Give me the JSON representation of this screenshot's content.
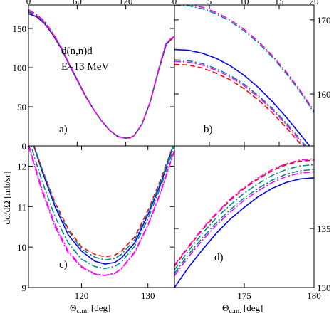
{
  "figure": {
    "ylabel": "dσ/dΩ [mb/sr]",
    "xlabel_left": "Θ",
    "xlabel_left_sub": "c.m.",
    "xlabel_left_unit": " [deg]",
    "xlabel_right": "Θ",
    "xlabel_right_sub": "c.m.",
    "xlabel_right_unit": " [deg]",
    "reaction": "d(n,n)d",
    "energy": "E=13 MeV"
  },
  "chart_data": [
    {
      "panel": "a)",
      "type": "line",
      "xlim": [
        0,
        180
      ],
      "ylim": [
        0,
        180
      ],
      "xticks": [
        0,
        60,
        120
      ],
      "yticks": [
        0,
        50,
        100,
        150
      ],
      "series": [
        {
          "style": "solid",
          "color": "#0000ff",
          "x": [
            0,
            10,
            20,
            30,
            40,
            50,
            60,
            70,
            80,
            90,
            100,
            110,
            120,
            125,
            130,
            140,
            150,
            160,
            170,
            180
          ],
          "y": [
            169,
            165,
            156,
            142,
            125,
            104,
            84,
            64,
            47,
            32,
            20,
            12,
            9.8,
            10.5,
            13,
            28,
            56,
            95,
            130,
            140
          ]
        },
        {
          "style": "dashed",
          "color": "#ff0000",
          "x": [
            0,
            10,
            20,
            30,
            40,
            50,
            60,
            70,
            80,
            90,
            100,
            110,
            120,
            125,
            130,
            140,
            150,
            160,
            170,
            180
          ],
          "y": [
            171,
            166,
            157,
            143,
            126,
            105,
            85,
            64,
            47,
            32,
            20,
            12,
            9.8,
            10.5,
            13,
            28,
            56,
            95,
            131,
            139
          ]
        },
        {
          "style": "dashdot",
          "color": "#008b8b",
          "x": [
            0,
            10,
            20,
            30,
            40,
            50,
            60,
            70,
            80,
            90,
            100,
            110,
            120,
            125,
            130,
            140,
            150,
            160,
            170,
            180
          ],
          "y": [
            172,
            167,
            158,
            144,
            126,
            105,
            85,
            65,
            47,
            32,
            20,
            12,
            9.7,
            10.4,
            13,
            28,
            56,
            96,
            132,
            140
          ]
        },
        {
          "style": "dashdot",
          "color": "#ff00ff",
          "x": [
            0,
            10,
            20,
            30,
            40,
            50,
            60,
            70,
            80,
            90,
            100,
            110,
            120,
            125,
            130,
            140,
            150,
            160,
            170,
            180
          ],
          "y": [
            174,
            168,
            159,
            144,
            127,
            105,
            85,
            65,
            47,
            32,
            20,
            12,
            9.3,
            10.0,
            13,
            28,
            56,
            96,
            133,
            140
          ]
        }
      ]
    },
    {
      "panel": "b)",
      "type": "line",
      "xlim": [
        0,
        20
      ],
      "ylim": [
        153,
        172
      ],
      "xticks": [
        0,
        5,
        10,
        15,
        20
      ],
      "yticks": [
        160,
        170
      ],
      "series": [
        {
          "style": "solid",
          "color": "#0000ff",
          "x": [
            0,
            2,
            4,
            6,
            8,
            10,
            12,
            14,
            16,
            18,
            20
          ],
          "y": [
            166.0,
            165.9,
            165.5,
            164.8,
            163.8,
            162.5,
            160.9,
            159.0,
            156.9,
            154.6,
            152.2
          ]
        },
        {
          "style": "dashed",
          "color": "#ff0000",
          "x": [
            0,
            2,
            4,
            6,
            8,
            10,
            12,
            14,
            16,
            18,
            20
          ],
          "y": [
            164.0,
            163.9,
            163.5,
            162.8,
            161.9,
            160.7,
            159.2,
            157.5,
            155.5,
            153.3,
            151.0
          ]
        },
        {
          "style": "dashdot",
          "color": "#008b8b",
          "x": [
            0,
            2,
            4,
            6,
            8,
            10,
            12,
            14,
            16,
            18,
            20
          ],
          "y": [
            172.0,
            171.9,
            171.5,
            170.8,
            169.8,
            168.5,
            166.9,
            165.0,
            162.8,
            160.3,
            157.5
          ]
        },
        {
          "style": "dashdot",
          "color": "#ff00ff",
          "x": [
            0,
            2,
            4,
            6,
            8,
            10,
            12,
            14,
            16,
            18,
            20
          ],
          "y": [
            172.2,
            172.1,
            171.7,
            171.0,
            170.0,
            168.7,
            167.1,
            165.2,
            163.0,
            160.5,
            157.7
          ]
        },
        {
          "style": "dashdot",
          "color": "#008b8b",
          "x": [
            0,
            2,
            4,
            6,
            8,
            10,
            12,
            14,
            16,
            18,
            20
          ],
          "y": [
            164.6,
            164.5,
            164.1,
            163.4,
            162.5,
            161.3,
            159.8,
            158.1,
            156.1,
            153.9,
            151.6
          ]
        },
        {
          "style": "dashdot",
          "color": "#ff00ff",
          "x": [
            0,
            2,
            4,
            6,
            8,
            10,
            12,
            14,
            16,
            18,
            20
          ],
          "y": [
            164.4,
            164.3,
            163.9,
            163.2,
            162.3,
            161.1,
            159.6,
            157.9,
            155.9,
            153.7,
            151.4
          ]
        }
      ]
    },
    {
      "panel": "c)",
      "type": "line",
      "xlim": [
        112,
        134
      ],
      "ylim": [
        9,
        12.5
      ],
      "xticks": [
        120,
        130
      ],
      "yticks": [
        9,
        10,
        11,
        12
      ],
      "series": [
        {
          "style": "solid",
          "color": "#0000ff",
          "x": [
            112,
            114,
            116,
            118,
            120,
            122,
            123.5,
            125,
            126,
            128,
            130,
            132,
            134
          ],
          "y": [
            12.9,
            11.9,
            11.0,
            10.3,
            9.9,
            9.65,
            9.58,
            9.62,
            9.73,
            10.1,
            10.8,
            11.6,
            12.6
          ]
        },
        {
          "style": "dashed",
          "color": "#ff0000",
          "x": [
            112,
            114,
            116,
            118,
            120,
            122,
            123.5,
            125,
            126,
            128,
            130,
            132,
            134
          ],
          "y": [
            12.9,
            11.95,
            11.1,
            10.45,
            10.0,
            9.82,
            9.76,
            9.8,
            9.9,
            10.25,
            10.9,
            11.7,
            12.6
          ]
        },
        {
          "style": "dashdot",
          "color": "#008b8b",
          "x": [
            112,
            114,
            116,
            118,
            120,
            122,
            123.5,
            125,
            126,
            128,
            130,
            132,
            134
          ],
          "y": [
            12.9,
            11.95,
            11.05,
            10.4,
            9.95,
            9.75,
            9.68,
            9.72,
            9.82,
            10.18,
            10.85,
            11.65,
            12.6
          ]
        },
        {
          "style": "dashdot",
          "color": "#ff00ff",
          "x": [
            112,
            114,
            116,
            118,
            120,
            122,
            123.5,
            125,
            126,
            128,
            130,
            132,
            134
          ],
          "y": [
            12.5,
            11.4,
            10.5,
            9.85,
            9.5,
            9.33,
            9.3,
            9.35,
            9.47,
            9.88,
            10.55,
            11.4,
            12.4
          ]
        },
        {
          "style": "dashdot",
          "color": "#008b8b",
          "x": [
            112,
            114,
            116,
            118,
            120,
            122,
            123.5,
            125,
            126,
            128,
            130,
            132,
            134
          ],
          "y": [
            12.7,
            11.65,
            10.75,
            10.1,
            9.7,
            9.52,
            9.47,
            9.52,
            9.63,
            10.02,
            10.7,
            11.52,
            12.5
          ]
        },
        {
          "style": "dashdot",
          "color": "#ff00ff",
          "x": [
            112,
            114,
            116,
            118,
            120,
            122,
            123.5,
            125,
            126,
            128,
            130,
            132,
            134
          ],
          "y": [
            12.55,
            11.45,
            10.55,
            9.9,
            9.52,
            9.34,
            9.3,
            9.35,
            9.46,
            9.86,
            10.53,
            11.38,
            12.38
          ]
        }
      ]
    },
    {
      "panel": "d)",
      "type": "line",
      "xlim": [
        170,
        180
      ],
      "ylim": [
        130,
        142
      ],
      "xticks": [
        175,
        180
      ],
      "yticks": [
        130,
        135
      ],
      "series": [
        {
          "style": "solid",
          "color": "#0000ff",
          "x": [
            170,
            171,
            172,
            173,
            174,
            175,
            176,
            177,
            178,
            179,
            180
          ],
          "y": [
            130.0,
            131.7,
            133.2,
            134.6,
            135.8,
            136.8,
            137.7,
            138.4,
            138.9,
            139.2,
            139.3
          ]
        },
        {
          "style": "dashed",
          "color": "#ff0000",
          "x": [
            170,
            171,
            172,
            173,
            174,
            175,
            176,
            177,
            178,
            179,
            180
          ],
          "y": [
            131.8,
            133.4,
            134.9,
            136.2,
            137.4,
            138.4,
            139.2,
            139.9,
            140.4,
            140.7,
            140.8
          ]
        },
        {
          "style": "dashdot",
          "color": "#008b8b",
          "x": [
            170,
            171,
            172,
            173,
            174,
            175,
            176,
            177,
            178,
            179,
            180
          ],
          "y": [
            131.5,
            133.1,
            134.6,
            135.9,
            137.0,
            138.0,
            138.8,
            139.5,
            140.0,
            140.3,
            140.4
          ]
        },
        {
          "style": "dashdot",
          "color": "#ff00ff",
          "x": [
            170,
            171,
            172,
            173,
            174,
            175,
            176,
            177,
            178,
            179,
            180
          ],
          "y": [
            131.9,
            133.5,
            135.0,
            136.3,
            137.5,
            138.5,
            139.3,
            140.0,
            140.5,
            140.8,
            140.9
          ]
        },
        {
          "style": "dashdot",
          "color": "#008b8b",
          "x": [
            170,
            171,
            172,
            173,
            174,
            175,
            176,
            177,
            178,
            179,
            180
          ],
          "y": [
            131.2,
            132.8,
            134.2,
            135.5,
            136.6,
            137.6,
            138.4,
            139.1,
            139.6,
            139.9,
            140.0
          ]
        },
        {
          "style": "dashdot",
          "color": "#ff00ff",
          "x": [
            170,
            171,
            172,
            173,
            174,
            175,
            176,
            177,
            178,
            179,
            180
          ],
          "y": [
            131.0,
            132.6,
            134.0,
            135.3,
            136.4,
            137.4,
            138.2,
            138.9,
            139.4,
            139.7,
            139.8
          ]
        }
      ]
    }
  ]
}
